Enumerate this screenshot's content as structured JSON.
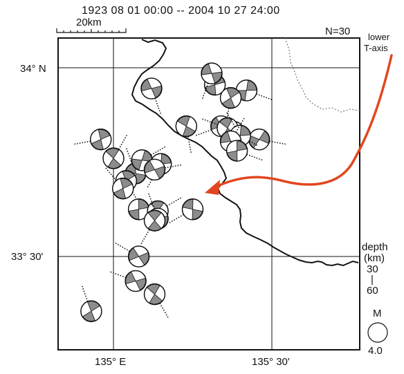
{
  "header": {
    "period": "1923 08 01 00:00 -- 2004 10 27 24:00",
    "scale_label": "20km",
    "count": "N=30"
  },
  "annotation": {
    "line1": "lower",
    "line2": "T-axis",
    "arrow_color": "#e2461f"
  },
  "axes": {
    "lat_labels": [
      "34° N",
      "33° 30'"
    ],
    "lon_labels": [
      "135° E",
      "135° 30'"
    ]
  },
  "legend": {
    "depth_title_1": "depth",
    "depth_title_2": "(km)",
    "depth_top": "30",
    "depth_sep": "|",
    "depth_bottom": "60",
    "mag_title": "M",
    "mag_value": "4.0"
  },
  "colors": {
    "frame": "#111111",
    "beachball_fill": "#8c8c8c",
    "coastline": "#111111",
    "border": "#777777"
  },
  "events": [
    {
      "id": 1,
      "lat": 33.955,
      "lon": 135.32,
      "tick": 40
    },
    {
      "id": 2,
      "lat": 33.985,
      "lon": 135.31,
      "tick": 110
    },
    {
      "id": 3,
      "lat": 33.94,
      "lon": 135.42,
      "tick": 20
    },
    {
      "id": 4,
      "lat": 33.945,
      "lon": 135.12,
      "tick": 70
    },
    {
      "id": 5,
      "lat": 33.81,
      "lon": 135.46,
      "tick": 10
    },
    {
      "id": 6,
      "lat": 33.845,
      "lon": 135.23,
      "tick": 80
    },
    {
      "id": 7,
      "lat": 33.92,
      "lon": 135.37,
      "tick": 100
    },
    {
      "id": 8,
      "lat": 33.83,
      "lon": 135.38,
      "tick": 30
    },
    {
      "id": 9,
      "lat": 33.845,
      "lon": 135.34,
      "tick": 160
    },
    {
      "id": 10,
      "lat": 33.84,
      "lon": 135.36,
      "tick": 200
    },
    {
      "id": 11,
      "lat": 33.82,
      "lon": 135.4,
      "tick": 240
    },
    {
      "id": 12,
      "lat": 33.805,
      "lon": 135.37,
      "tick": 300
    },
    {
      "id": 13,
      "lat": 33.78,
      "lon": 135.39,
      "tick": 20
    },
    {
      "id": 14,
      "lat": 33.81,
      "lon": 134.96,
      "tick": 170
    },
    {
      "id": 15,
      "lat": 33.76,
      "lon": 135.0,
      "tick": 300
    },
    {
      "id": 16,
      "lat": 33.72,
      "lon": 135.07,
      "tick": 250
    },
    {
      "id": 17,
      "lat": 33.755,
      "lon": 135.09,
      "tick": 330
    },
    {
      "id": 18,
      "lat": 33.745,
      "lon": 135.15,
      "tick": 120
    },
    {
      "id": 19,
      "lat": 33.73,
      "lon": 135.13,
      "tick": 350
    },
    {
      "id": 20,
      "lat": 33.7,
      "lon": 135.04,
      "tick": 60
    },
    {
      "id": 21,
      "lat": 33.68,
      "lon": 135.03,
      "tick": 230
    },
    {
      "id": 22,
      "lat": 33.625,
      "lon": 135.25,
      "tick": 150
    },
    {
      "id": 23,
      "lat": 33.625,
      "lon": 135.08,
      "tick": 30
    },
    {
      "id": 24,
      "lat": 33.62,
      "lon": 135.14,
      "tick": 330
    },
    {
      "id": 25,
      "lat": 33.6,
      "lon": 135.14,
      "tick": 250
    },
    {
      "id": 26,
      "lat": 33.595,
      "lon": 135.13,
      "tick": 120
    },
    {
      "id": 27,
      "lat": 33.5,
      "lon": 135.08,
      "tick": 210
    },
    {
      "id": 28,
      "lat": 33.435,
      "lon": 135.07,
      "tick": 200
    },
    {
      "id": 29,
      "lat": 33.4,
      "lon": 135.13,
      "tick": 60
    },
    {
      "id": 30,
      "lat": 33.355,
      "lon": 134.93,
      "tick": 250
    }
  ]
}
